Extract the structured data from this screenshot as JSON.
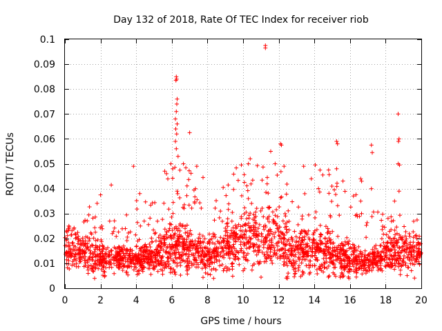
{
  "chart_data": {
    "type": "scatter",
    "title": "Day 132 of 2018, Rate Of TEC Index for receiver riob",
    "xlabel": "GPS time / hours",
    "ylabel": "ROTI / TECUs",
    "xlim": [
      0,
      20
    ],
    "ylim": [
      0,
      0.1
    ],
    "x_ticks": [
      0,
      2,
      4,
      6,
      8,
      10,
      12,
      14,
      16,
      18,
      20
    ],
    "y_ticks": [
      0,
      0.01,
      0.02,
      0.03,
      0.04,
      0.05,
      0.06,
      0.07,
      0.08,
      0.09,
      0.1
    ],
    "x_tick_labels": [
      "0",
      "2",
      "4",
      "6",
      "8",
      "10",
      "12",
      "14",
      "16",
      "18",
      "20"
    ],
    "y_tick_labels": [
      "0",
      "0.01",
      "0.02",
      "0.03",
      "0.04",
      "0.05",
      "0.06",
      "0.07",
      "0.08",
      "0.09",
      "0.1"
    ],
    "grid": true,
    "marker": "+",
    "color": "#ff0000",
    "point_count": 2400,
    "seed": 132,
    "profile": [
      {
        "t": 0.0,
        "base": 0.014,
        "spread": 0.006,
        "top": 0.027
      },
      {
        "t": 1.0,
        "base": 0.014,
        "spread": 0.007,
        "top": 0.031
      },
      {
        "t": 2.0,
        "base": 0.012,
        "spread": 0.006,
        "top": 0.037
      },
      {
        "t": 3.0,
        "base": 0.012,
        "spread": 0.005,
        "top": 0.03
      },
      {
        "t": 4.0,
        "base": 0.011,
        "spread": 0.005,
        "top": 0.037
      },
      {
        "t": 5.0,
        "base": 0.013,
        "spread": 0.006,
        "top": 0.035
      },
      {
        "t": 6.0,
        "base": 0.016,
        "spread": 0.009,
        "top": 0.05
      },
      {
        "t": 7.0,
        "base": 0.016,
        "spread": 0.008,
        "top": 0.049
      },
      {
        "t": 8.0,
        "base": 0.013,
        "spread": 0.006,
        "top": 0.033
      },
      {
        "t": 9.0,
        "base": 0.016,
        "spread": 0.009,
        "top": 0.045
      },
      {
        "t": 10.0,
        "base": 0.018,
        "spread": 0.01,
        "top": 0.051
      },
      {
        "t": 11.0,
        "base": 0.02,
        "spread": 0.011,
        "top": 0.05
      },
      {
        "t": 12.0,
        "base": 0.018,
        "spread": 0.01,
        "top": 0.049
      },
      {
        "t": 13.0,
        "base": 0.014,
        "spread": 0.008,
        "top": 0.045
      },
      {
        "t": 14.0,
        "base": 0.015,
        "spread": 0.009,
        "top": 0.049
      },
      {
        "t": 15.0,
        "base": 0.014,
        "spread": 0.008,
        "top": 0.045
      },
      {
        "t": 16.0,
        "base": 0.012,
        "spread": 0.006,
        "top": 0.043
      },
      {
        "t": 17.0,
        "base": 0.01,
        "spread": 0.004,
        "top": 0.03
      },
      {
        "t": 18.0,
        "base": 0.013,
        "spread": 0.006,
        "top": 0.033
      },
      {
        "t": 19.0,
        "base": 0.014,
        "spread": 0.007,
        "top": 0.03
      },
      {
        "t": 20.0,
        "base": 0.014,
        "spread": 0.006,
        "top": 0.028
      }
    ],
    "outliers": [
      {
        "x": 11.25,
        "y": 0.0975
      },
      {
        "x": 11.25,
        "y": 0.0965
      },
      {
        "x": 6.25,
        "y": 0.085
      },
      {
        "x": 6.27,
        "y": 0.084
      },
      {
        "x": 6.23,
        "y": 0.0835
      },
      {
        "x": 6.3,
        "y": 0.076
      },
      {
        "x": 6.28,
        "y": 0.074
      },
      {
        "x": 6.25,
        "y": 0.071
      },
      {
        "x": 6.2,
        "y": 0.068
      },
      {
        "x": 6.3,
        "y": 0.066
      },
      {
        "x": 6.22,
        "y": 0.064
      },
      {
        "x": 6.27,
        "y": 0.062
      },
      {
        "x": 6.2,
        "y": 0.059
      },
      {
        "x": 6.25,
        "y": 0.056
      },
      {
        "x": 6.35,
        "y": 0.053
      },
      {
        "x": 7.0,
        "y": 0.0625
      },
      {
        "x": 5.95,
        "y": 0.05
      },
      {
        "x": 6.05,
        "y": 0.048
      },
      {
        "x": 6.65,
        "y": 0.05
      },
      {
        "x": 5.6,
        "y": 0.047
      },
      {
        "x": 5.7,
        "y": 0.046
      },
      {
        "x": 18.7,
        "y": 0.07
      },
      {
        "x": 18.75,
        "y": 0.06
      },
      {
        "x": 18.72,
        "y": 0.059
      },
      {
        "x": 18.7,
        "y": 0.05
      },
      {
        "x": 18.78,
        "y": 0.0495
      },
      {
        "x": 18.75,
        "y": 0.039
      },
      {
        "x": 18.5,
        "y": 0.035
      },
      {
        "x": 15.25,
        "y": 0.059
      },
      {
        "x": 15.3,
        "y": 0.058
      },
      {
        "x": 15.25,
        "y": 0.048
      },
      {
        "x": 17.2,
        "y": 0.0575
      },
      {
        "x": 17.25,
        "y": 0.0545
      },
      {
        "x": 17.2,
        "y": 0.04
      },
      {
        "x": 16.6,
        "y": 0.044
      },
      {
        "x": 16.65,
        "y": 0.043
      },
      {
        "x": 16.6,
        "y": 0.035
      },
      {
        "x": 12.1,
        "y": 0.058
      },
      {
        "x": 12.15,
        "y": 0.0575
      },
      {
        "x": 11.55,
        "y": 0.055
      },
      {
        "x": 12.3,
        "y": 0.049
      },
      {
        "x": 11.8,
        "y": 0.05
      },
      {
        "x": 3.85,
        "y": 0.049
      },
      {
        "x": 2.6,
        "y": 0.0415
      },
      {
        "x": 2.0,
        "y": 0.0375
      },
      {
        "x": 4.2,
        "y": 0.038
      },
      {
        "x": 7.75,
        "y": 0.0445
      },
      {
        "x": 7.4,
        "y": 0.049
      },
      {
        "x": 10.4,
        "y": 0.052
      },
      {
        "x": 10.3,
        "y": 0.05
      },
      {
        "x": 14.05,
        "y": 0.0495
      },
      {
        "x": 13.4,
        "y": 0.049
      },
      {
        "x": 14.8,
        "y": 0.0475
      }
    ]
  }
}
